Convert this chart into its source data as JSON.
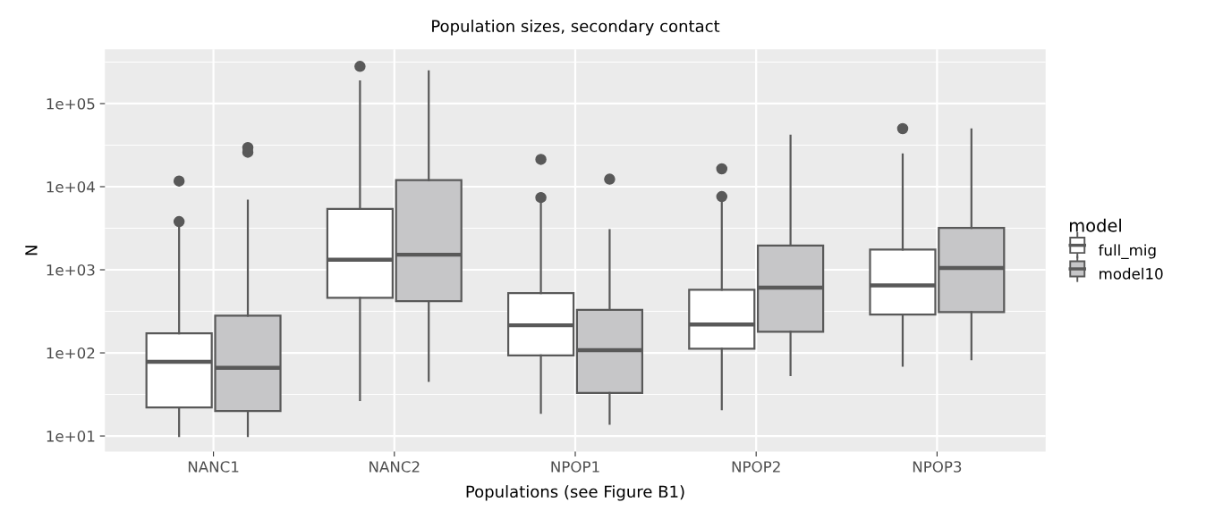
{
  "chart_data": {
    "type": "box",
    "title": "Population sizes, secondary contact",
    "xlabel": "Populations (see Figure B1)",
    "ylabel": "N",
    "legend_title": "model",
    "categories": [
      "NANC1",
      "NANC2",
      "NPOP1",
      "NPOP2",
      "NPOP3"
    ],
    "series": [
      {
        "name": "full_mig",
        "color": "#ffffff",
        "boxes": [
          {
            "low": 10,
            "q1": 22,
            "median": 78,
            "q3": 172,
            "high": 3200,
            "outliers": [
              3800,
              11700
            ]
          },
          {
            "low": 27,
            "q1": 460,
            "median": 1320,
            "q3": 5400,
            "high": 185000,
            "outliers": [
              280000
            ]
          },
          {
            "low": 19,
            "q1": 93,
            "median": 215,
            "q3": 525,
            "high": 6500,
            "outliers": [
              7400,
              21300
            ]
          },
          {
            "low": 21,
            "q1": 112,
            "median": 220,
            "q3": 575,
            "high": 6800,
            "outliers": [
              7600,
              16400
            ]
          },
          {
            "low": 70,
            "q1": 290,
            "median": 650,
            "q3": 1750,
            "high": 24500,
            "outliers": [
              50000
            ]
          }
        ]
      },
      {
        "name": "model10",
        "color": "#c6c6c8",
        "boxes": [
          {
            "low": 10,
            "q1": 20,
            "median": 66,
            "q3": 280,
            "high": 6800,
            "outliers": [
              26000,
              29500
            ]
          },
          {
            "low": 46,
            "q1": 420,
            "median": 1520,
            "q3": 12000,
            "high": 245000
          },
          {
            "low": 14,
            "q1": 33,
            "median": 108,
            "q3": 330,
            "high": 3000,
            "outliers": [
              12300
            ]
          },
          {
            "low": 54,
            "q1": 180,
            "median": 610,
            "q3": 1960,
            "high": 41000
          },
          {
            "low": 84,
            "q1": 310,
            "median": 1050,
            "q3": 3200,
            "high": 49000
          }
        ]
      }
    ],
    "log": true,
    "ylim": [
      6.5,
      450000
    ],
    "yticks": [
      {
        "value": 10,
        "label": "1e+01"
      },
      {
        "value": 100,
        "label": "1e+02"
      },
      {
        "value": 1000,
        "label": "1e+03"
      },
      {
        "value": 10000,
        "label": "1e+04"
      },
      {
        "value": 100000,
        "label": "1e+05"
      }
    ],
    "grid": true,
    "legend": "right"
  }
}
